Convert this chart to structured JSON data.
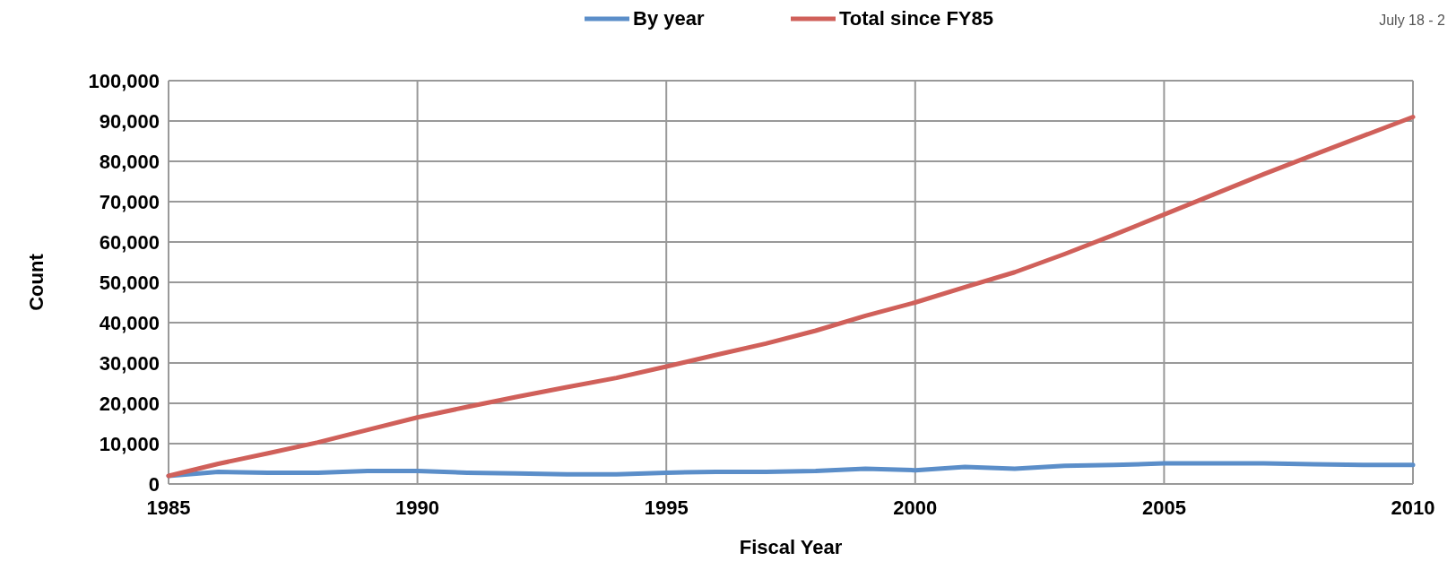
{
  "chart_data": {
    "type": "line",
    "xlabel": "Fiscal Year",
    "ylabel": "Count",
    "annotations": [
      "July 18 - 2"
    ],
    "x": [
      1985,
      1986,
      1987,
      1988,
      1989,
      1990,
      1991,
      1992,
      1993,
      1994,
      1995,
      1996,
      1997,
      1998,
      1999,
      2000,
      2001,
      2002,
      2003,
      2004,
      2005,
      2006,
      2007,
      2008,
      2009,
      2010
    ],
    "series": [
      {
        "name": "By year",
        "color": "#5b8ec9",
        "values": [
          2000,
          3000,
          2800,
          2800,
          3200,
          3200,
          2800,
          2600,
          2400,
          2400,
          2800,
          3000,
          3000,
          3200,
          3800,
          3400,
          4200,
          3800,
          4500,
          4700,
          5100,
          5100,
          5100,
          4900,
          4700,
          4700
        ]
      },
      {
        "name": "Total since FY85",
        "color": "#d0605a",
        "values": [
          2000,
          5000,
          7600,
          10300,
          13400,
          16500,
          19100,
          21600,
          24000,
          26300,
          29100,
          32000,
          34800,
          38000,
          41700,
          45000,
          48800,
          52500,
          57000,
          61800,
          66800,
          71800,
          76800,
          81600,
          86300,
          91000
        ]
      }
    ],
    "xlim": [
      1985,
      2010
    ],
    "xticks": [
      1985,
      1990,
      1995,
      2000,
      2005,
      2010
    ],
    "ylim": [
      0,
      100000
    ],
    "yticks": [
      {
        "value": 0,
        "label": "0"
      },
      {
        "value": 10000,
        "label": "10,000"
      },
      {
        "value": 20000,
        "label": "20,000"
      },
      {
        "value": 30000,
        "label": "30,000"
      },
      {
        "value": 40000,
        "label": "40,000"
      },
      {
        "value": 50000,
        "label": "50,000"
      },
      {
        "value": 60000,
        "label": "60,000"
      },
      {
        "value": 70000,
        "label": "70,000"
      },
      {
        "value": 80000,
        "label": "80,000"
      },
      {
        "value": 90000,
        "label": "90,000"
      },
      {
        "value": 100000,
        "label": "100,000"
      }
    ],
    "grid": true,
    "legend": "top",
    "marker": "none",
    "line_style": "solid"
  }
}
